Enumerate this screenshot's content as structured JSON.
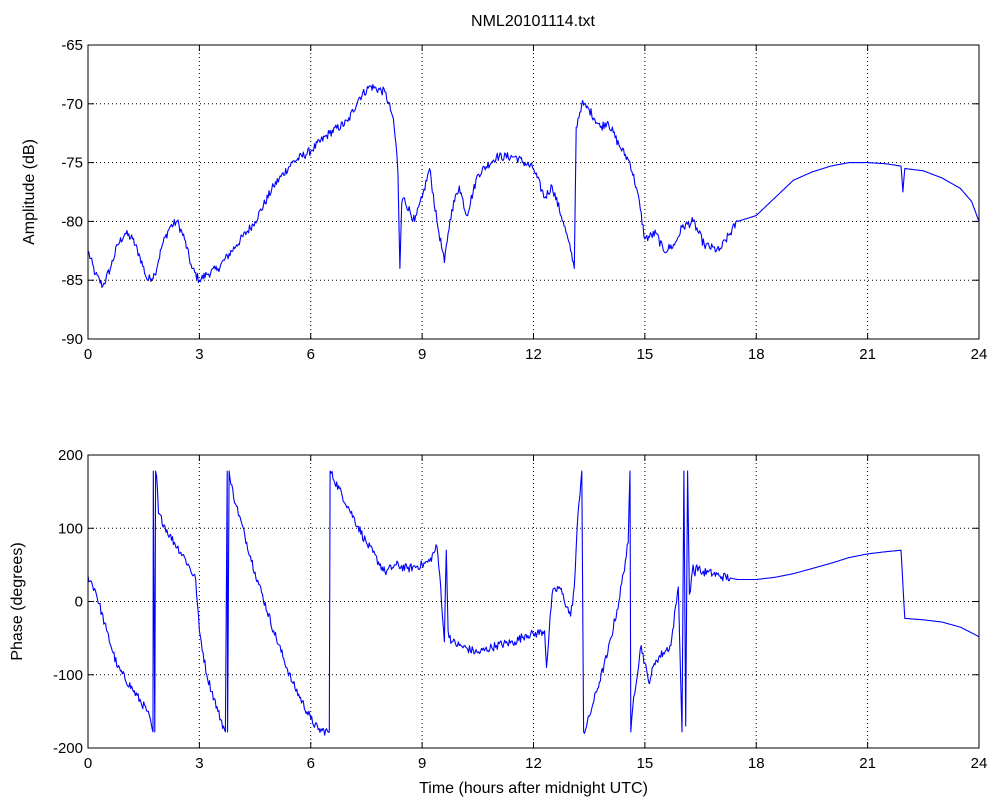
{
  "title": "NML20101114.txt",
  "colors": {
    "line": "#0000ff",
    "axes": "#000000",
    "grid": "#000000",
    "background": "#ffffff"
  },
  "chart_data": [
    {
      "type": "line",
      "title": "NML20101114.txt",
      "xlabel": "",
      "ylabel": "Amplitude (dB)",
      "xlim": [
        0,
        24
      ],
      "ylim": [
        -90,
        -65
      ],
      "xticks": [
        "0",
        "3",
        "6",
        "9",
        "12",
        "15",
        "18",
        "21",
        "24"
      ],
      "yticks": [
        "-90",
        "-85",
        "-80",
        "-75",
        "-70",
        "-65"
      ],
      "grid": true,
      "series": [
        {
          "color": "#0000ff",
          "noisy_until_x": 17.5,
          "x": [
            0,
            0.2,
            0.4,
            0.6,
            0.8,
            1.0,
            1.2,
            1.4,
            1.6,
            1.8,
            2.0,
            2.2,
            2.4,
            2.6,
            2.8,
            3.0,
            3.2,
            3.5,
            4.0,
            4.5,
            5.0,
            5.5,
            6.0,
            6.5,
            7.0,
            7.3,
            7.6,
            8.0,
            8.2,
            8.3,
            8.35,
            8.4,
            8.45,
            8.5,
            8.8,
            9.0,
            9.2,
            9.4,
            9.6,
            9.7,
            9.8,
            10.0,
            10.2,
            10.5,
            11.0,
            11.5,
            12.0,
            12.3,
            12.5,
            12.8,
            13.0,
            13.1,
            13.15,
            13.3,
            13.5,
            13.8,
            14.0,
            14.3,
            14.6,
            14.8,
            15.0,
            15.3,
            15.5,
            15.8,
            16.0,
            16.3,
            16.6,
            17.0,
            17.5,
            18.0,
            18.5,
            19.0,
            19.5,
            20.0,
            20.5,
            21.0,
            21.5,
            21.9,
            21.95,
            22.0,
            22.5,
            23.0,
            23.5,
            23.8,
            24.0
          ],
          "y": [
            -82.5,
            -84.5,
            -85.5,
            -84.0,
            -82.0,
            -81.0,
            -81.5,
            -83.0,
            -85.0,
            -84.5,
            -82.0,
            -80.5,
            -80.0,
            -81.5,
            -84.0,
            -85.0,
            -84.5,
            -84.0,
            -82.0,
            -80.0,
            -77.0,
            -75.0,
            -74.0,
            -72.5,
            -71.5,
            -69.5,
            -68.5,
            -69.0,
            -71.0,
            -73.5,
            -76.0,
            -84.0,
            -78.5,
            -78.0,
            -80.0,
            -78.0,
            -75.5,
            -80.0,
            -83.5,
            -81.0,
            -79.0,
            -77.0,
            -79.5,
            -76.0,
            -74.5,
            -74.5,
            -75.5,
            -78.0,
            -77.0,
            -80.0,
            -82.5,
            -84.0,
            -72.0,
            -70.0,
            -70.5,
            -72.0,
            -71.5,
            -73.5,
            -75.0,
            -77.5,
            -81.5,
            -81.0,
            -82.5,
            -82.0,
            -80.5,
            -80.0,
            -82.0,
            -82.5,
            -80.0,
            -79.5,
            -78.0,
            -76.5,
            -75.8,
            -75.3,
            -75.0,
            -75.0,
            -75.1,
            -75.3,
            -77.5,
            -75.5,
            -75.7,
            -76.3,
            -77.2,
            -78.3,
            -80.0
          ]
        }
      ]
    },
    {
      "type": "line",
      "title": "",
      "xlabel": "Time (hours after midnight UTC)",
      "ylabel": "Phase (degrees)",
      "xlim": [
        0,
        24
      ],
      "ylim": [
        -200,
        200
      ],
      "xticks": [
        "0",
        "3",
        "6",
        "9",
        "12",
        "15",
        "18",
        "21",
        "24"
      ],
      "yticks": [
        "-200",
        "-100",
        "0",
        "100",
        "200"
      ],
      "grid": true,
      "series": [
        {
          "color": "#0000ff",
          "noisy_until_x": 17.3,
          "x": [
            0,
            0.2,
            0.5,
            0.8,
            1.2,
            1.6,
            1.75,
            1.76,
            1.8,
            1.82,
            1.85,
            1.9,
            2.2,
            2.6,
            2.9,
            3.0,
            3.2,
            3.5,
            3.7,
            3.75,
            3.76,
            3.8,
            3.82,
            3.85,
            4.0,
            4.5,
            5.0,
            5.5,
            6.0,
            6.2,
            6.5,
            6.52,
            6.55,
            7.0,
            7.5,
            8.0,
            8.3,
            8.6,
            9.0,
            9.2,
            9.4,
            9.5,
            9.6,
            9.65,
            9.7,
            9.8,
            10.0,
            10.5,
            11.0,
            11.5,
            11.8,
            12.0,
            12.3,
            12.35,
            12.5,
            12.7,
            13.0,
            13.1,
            13.2,
            13.3,
            13.35,
            13.4,
            13.6,
            14.0,
            14.3,
            14.55,
            14.6,
            14.62,
            14.7,
            14.9,
            15.1,
            15.3,
            15.5,
            15.7,
            15.9,
            16.0,
            16.05,
            16.1,
            16.15,
            16.2,
            16.25,
            16.3,
            16.35,
            16.4,
            16.5,
            16.7,
            17.0,
            17.5,
            18.0,
            18.5,
            19.0,
            19.5,
            20.0,
            20.5,
            21.0,
            21.5,
            21.9,
            22.0,
            22.5,
            23.0,
            23.5,
            24.0
          ],
          "y": [
            35,
            15,
            -40,
            -90,
            -120,
            -150,
            -178,
            178,
            -178,
            178,
            170,
            120,
            90,
            60,
            30,
            -40,
            -100,
            -150,
            -178,
            178,
            -178,
            178,
            170,
            160,
            130,
            40,
            -40,
            -110,
            -160,
            -175,
            -178,
            178,
            175,
            130,
            80,
            40,
            50,
            45,
            50,
            55,
            75,
            20,
            -55,
            70,
            -40,
            -55,
            -60,
            -70,
            -60,
            -55,
            -45,
            -45,
            -40,
            -90,
            10,
            20,
            -20,
            20,
            120,
            178,
            -178,
            -175,
            -140,
            -70,
            0,
            80,
            178,
            -178,
            -130,
            -60,
            -110,
            -80,
            -70,
            -60,
            20,
            -178,
            178,
            -170,
            178,
            10,
            30,
            50,
            35,
            50,
            40,
            40,
            35,
            30,
            30,
            33,
            38,
            45,
            52,
            60,
            65,
            68,
            70,
            -23,
            -25,
            -28,
            -35,
            -48
          ]
        }
      ]
    }
  ]
}
